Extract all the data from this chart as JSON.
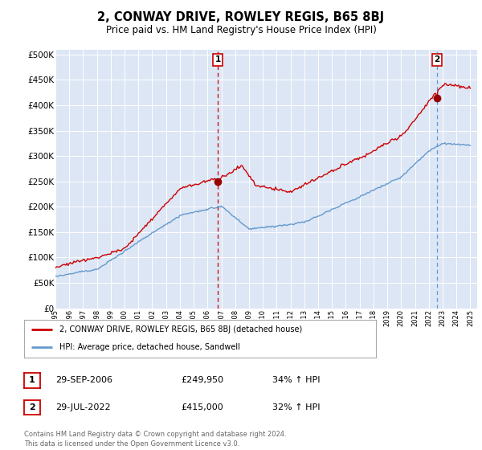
{
  "title": "2, CONWAY DRIVE, ROWLEY REGIS, B65 8BJ",
  "subtitle": "Price paid vs. HM Land Registry's House Price Index (HPI)",
  "bg_color": "#dce6f5",
  "hpi_color": "#6699cc",
  "price_color": "#cc0000",
  "vline1_color": "#cc0000",
  "vline2_color": "#6699cc",
  "marker1_price": 249950,
  "marker2_price": 415000,
  "legend_label_price": "2, CONWAY DRIVE, ROWLEY REGIS, B65 8BJ (detached house)",
  "legend_label_hpi": "HPI: Average price, detached house, Sandwell",
  "table_row1": [
    "1",
    "29-SEP-2006",
    "£249,950",
    "34% ↑ HPI"
  ],
  "table_row2": [
    "2",
    "29-JUL-2022",
    "£415,000",
    "32% ↑ HPI"
  ],
  "footer": "Contains HM Land Registry data © Crown copyright and database right 2024.\nThis data is licensed under the Open Government Licence v3.0.",
  "ylim": [
    0,
    510000
  ],
  "yticks": [
    0,
    50000,
    100000,
    150000,
    200000,
    250000,
    300000,
    350000,
    400000,
    450000,
    500000
  ],
  "date1": 2006.75,
  "date2": 2022.56,
  "xstart": 1995,
  "xend": 2025.5
}
